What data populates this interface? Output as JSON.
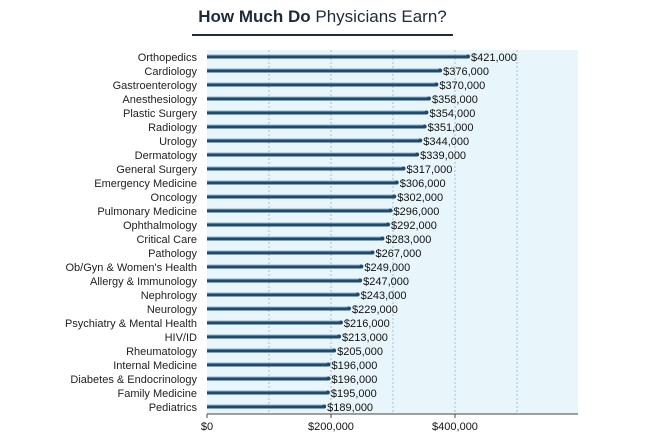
{
  "title": {
    "bold": "How Much Do",
    "regular": "Physicians Earn?"
  },
  "colors": {
    "bar": "#1e4a6e",
    "bar_highlight": "#8fb3cc",
    "plot_background": "#e8f6fb",
    "grid": "#9fbfd0",
    "axis": "#444444"
  },
  "chart_data": {
    "type": "bar",
    "orientation": "horizontal",
    "title": "How Much Do Physicians Earn?",
    "xlabel": "",
    "ylabel": "",
    "categories": [
      "Orthopedics",
      "Cardiology",
      "Gastroenterology",
      "Anesthesiology",
      "Plastic Surgery",
      "Radiology",
      "Urology",
      "Dermatology",
      "General Surgery",
      "Emergency Medicine",
      "Oncology",
      "Pulmonary Medicine",
      "Ophthalmology",
      "Critical Care",
      "Pathology",
      "Ob/Gyn & Women's Health",
      "Allergy & Immunology",
      "Nephrology",
      "Neurology",
      "Psychiatry & Mental Health",
      "HIV/ID",
      "Rheumatology",
      "Internal Medicine",
      "Diabetes & Endocrinology",
      "Family Medicine",
      "Pediatrics"
    ],
    "values": [
      421000,
      376000,
      370000,
      358000,
      354000,
      351000,
      344000,
      339000,
      317000,
      306000,
      302000,
      296000,
      292000,
      283000,
      267000,
      249000,
      247000,
      243000,
      229000,
      216000,
      213000,
      205000,
      196000,
      196000,
      195000,
      189000
    ],
    "value_labels": [
      "$421,000",
      "$376,000",
      "$370,000",
      "$358,000",
      "$354,000",
      "$351,000",
      "$344,000",
      "$339,000",
      "$317,000",
      "$306,000",
      "$302,000",
      "$296,000",
      "$292,000",
      "$283,000",
      "$267,000",
      "$249,000",
      "$247,000",
      "$243,000",
      "$229,000",
      "$216,000",
      "$213,000",
      "$205,000",
      "$196,000",
      "$196,000",
      "$195,000",
      "$189,000"
    ],
    "xlim": [
      0,
      600000
    ],
    "xticks": [
      0,
      200000,
      400000
    ],
    "xtick_labels": [
      "$0",
      "$200,000",
      "$400,000"
    ],
    "grid": true
  }
}
